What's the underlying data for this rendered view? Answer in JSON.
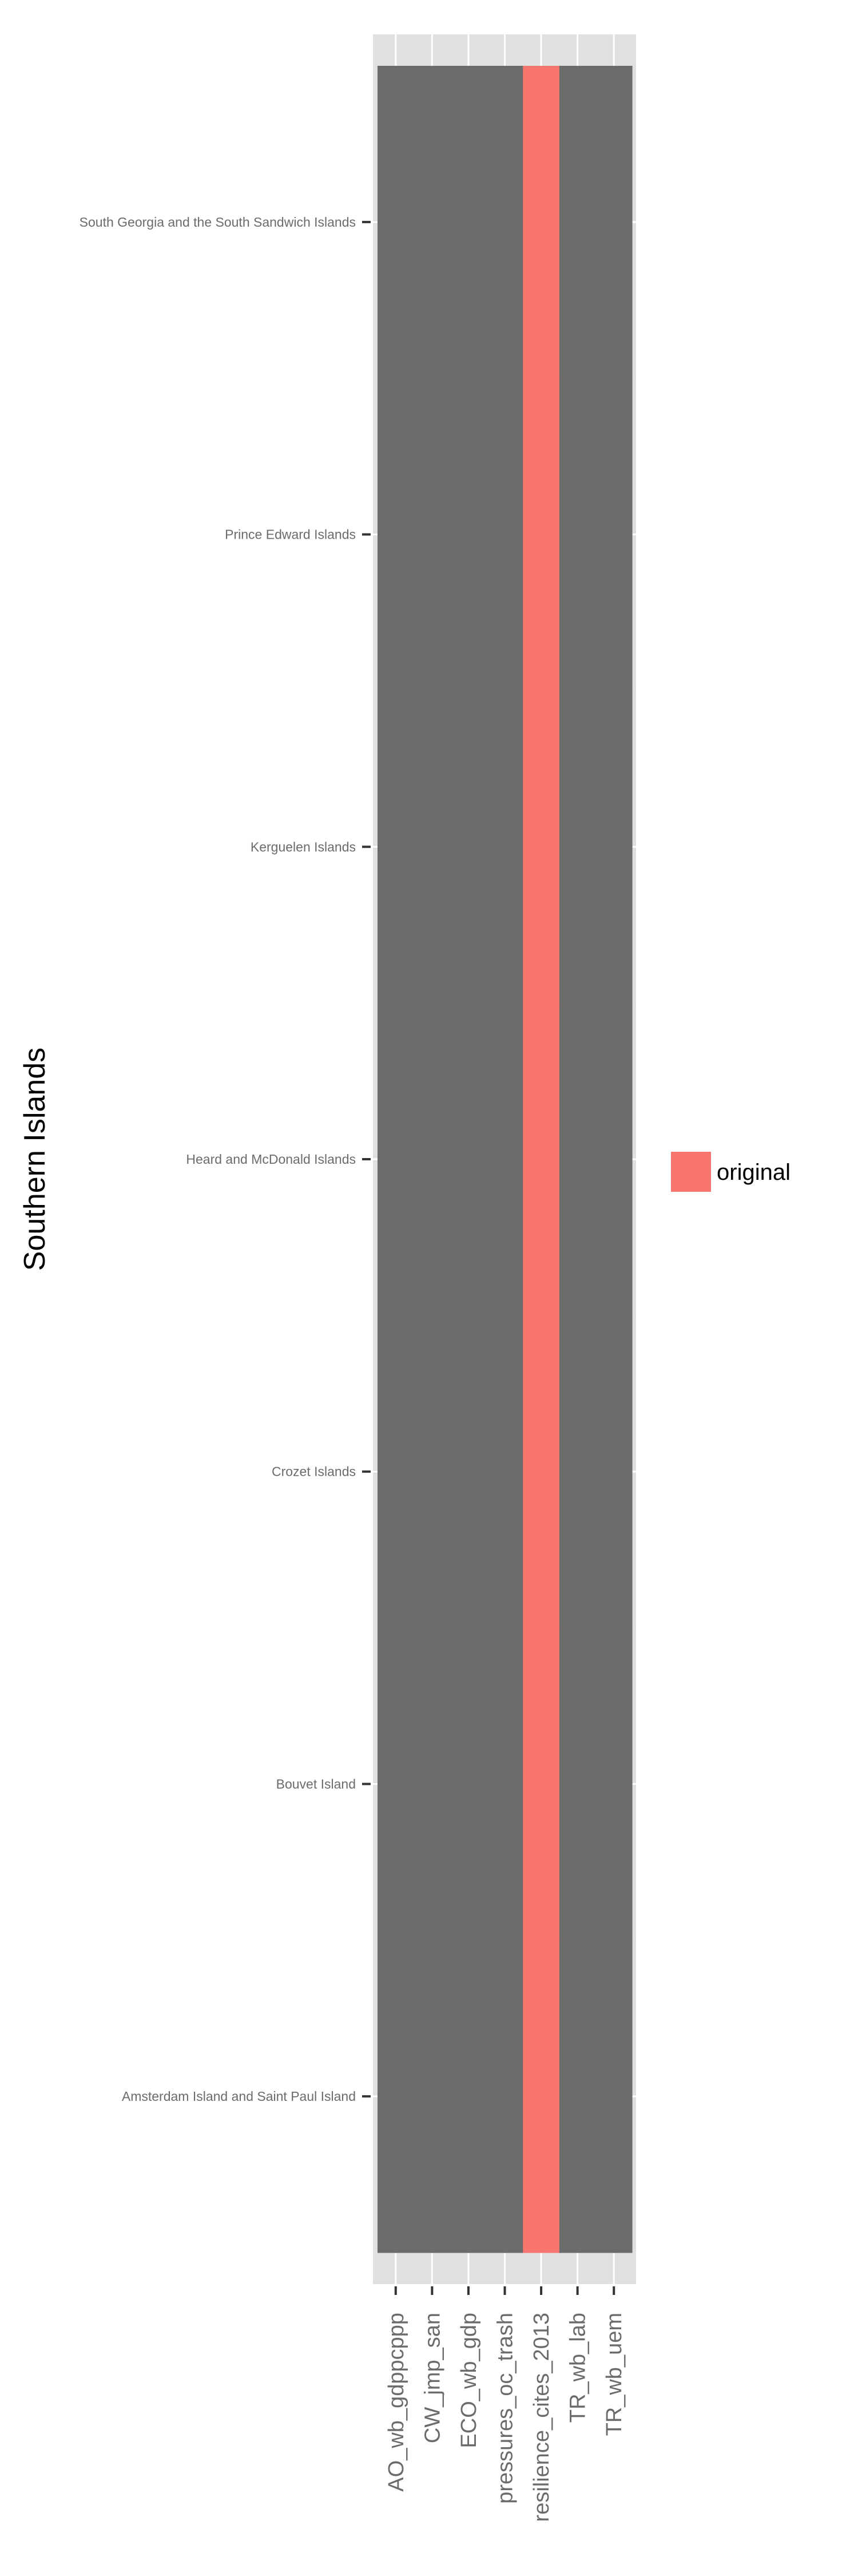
{
  "chart_data": {
    "type": "heatmap",
    "title": "",
    "xlabel": "",
    "ylabel": "Southern Islands",
    "x_categories": [
      "AO_wb_gdppcppp",
      "CW_jmp_san",
      "ECO_wb_gdp",
      "pressures_oc_trash",
      "resilience_cites_2013",
      "TR_wb_lab",
      "TR_wb_uem"
    ],
    "y_categories": [
      "Amsterdam Island and Saint Paul Island",
      "Bouvet Island",
      "Crozet Islands",
      "Heard and McDonald Islands",
      "Kerguelen Islands",
      "Prince Edward Islands",
      "South Georgia and the South Sandwich Islands"
    ],
    "cells": [
      [
        "",
        "",
        "",
        "",
        "original",
        "",
        ""
      ],
      [
        "",
        "",
        "",
        "",
        "original",
        "",
        ""
      ],
      [
        "",
        "",
        "",
        "",
        "original",
        "",
        ""
      ],
      [
        "",
        "",
        "",
        "",
        "original",
        "",
        ""
      ],
      [
        "",
        "",
        "",
        "",
        "original",
        "",
        ""
      ],
      [
        "",
        "",
        "",
        "",
        "original",
        "",
        ""
      ],
      [
        "",
        "",
        "",
        "",
        "original",
        "",
        ""
      ]
    ],
    "legend": {
      "placement": "right",
      "entries": [
        {
          "label": "original",
          "color": "#F8766D"
        }
      ]
    },
    "colors": {
      "missing": "#6b6b6b",
      "panel": "#e0e0e0",
      "grid": "#ffffff"
    },
    "grid": true
  }
}
